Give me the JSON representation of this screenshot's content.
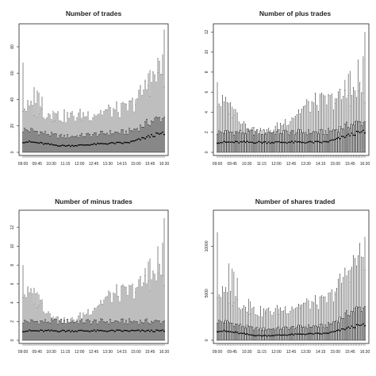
{
  "chart_data": [
    {
      "type": "box",
      "title": "Number of trades",
      "ylim": [
        0,
        95
      ],
      "yticks": [
        0,
        20,
        40,
        60,
        80
      ],
      "xtick_labels": [
        "09:00",
        "09:45",
        "10:30",
        "11:15",
        "12:00",
        "12:45",
        "13:30",
        "14:15",
        "15:00",
        "15:45",
        "16:30"
      ],
      "n_boxes": 90,
      "profile": {
        "median": [
          8,
          5,
          7,
          14
        ],
        "q3": [
          17,
          12,
          15,
          26
        ],
        "whisker_hi": [
          34,
          27,
          32,
          60
        ],
        "max": [
          68,
          32,
          36,
          93
        ]
      }
    },
    {
      "type": "box",
      "title": "Number of plus trades",
      "ylim": [
        0,
        12.5
      ],
      "yticks": [
        0,
        2,
        4,
        6,
        8,
        10,
        12
      ],
      "xtick_labels": [
        "09:00",
        "09:45",
        "10:30",
        "11:15",
        "12:00",
        "12:45",
        "13:30",
        "14:15",
        "15:00",
        "15:45",
        "16:30"
      ],
      "n_boxes": 90,
      "profile": {
        "median": [
          1,
          1,
          1,
          2
        ],
        "q3": [
          2,
          2,
          2,
          3
        ],
        "whisker_hi": [
          5,
          2,
          5,
          6
        ],
        "max": [
          7,
          2,
          5,
          12
        ]
      }
    },
    {
      "type": "box",
      "title": "Number of minus trades",
      "ylim": [
        0,
        13.5
      ],
      "yticks": [
        0,
        2,
        4,
        6,
        8,
        10,
        12
      ],
      "xtick_labels": [
        "09:00",
        "09:45",
        "10:30",
        "11:15",
        "12:00",
        "12:45",
        "13:30",
        "14:15",
        "15:00",
        "15:45",
        "16:30"
      ],
      "n_boxes": 90,
      "profile": {
        "median": [
          1,
          1,
          1,
          1
        ],
        "q3": [
          2,
          2,
          2,
          2
        ],
        "whisker_hi": [
          5,
          2,
          5,
          7
        ],
        "max": [
          8,
          2,
          5,
          13
        ]
      }
    },
    {
      "type": "box",
      "title": "Number of shares traded",
      "ylim": [
        0,
        13500
      ],
      "yticks": [
        0,
        5000,
        10000
      ],
      "xtick_labels": [
        "09:00",
        "09:45",
        "10:30",
        "11:15",
        "12:00",
        "12:45",
        "13:30",
        "14:15",
        "15:00",
        "15:45",
        "16:30"
      ],
      "n_boxes": 90,
      "profile": {
        "median": [
          1000,
          500,
          700,
          1600
        ],
        "q3": [
          2000,
          1200,
          1500,
          3500
        ],
        "whisker_hi": [
          5000,
          3000,
          4000,
          9000
        ],
        "max": [
          11500,
          4000,
          5000,
          11000
        ]
      }
    }
  ]
}
